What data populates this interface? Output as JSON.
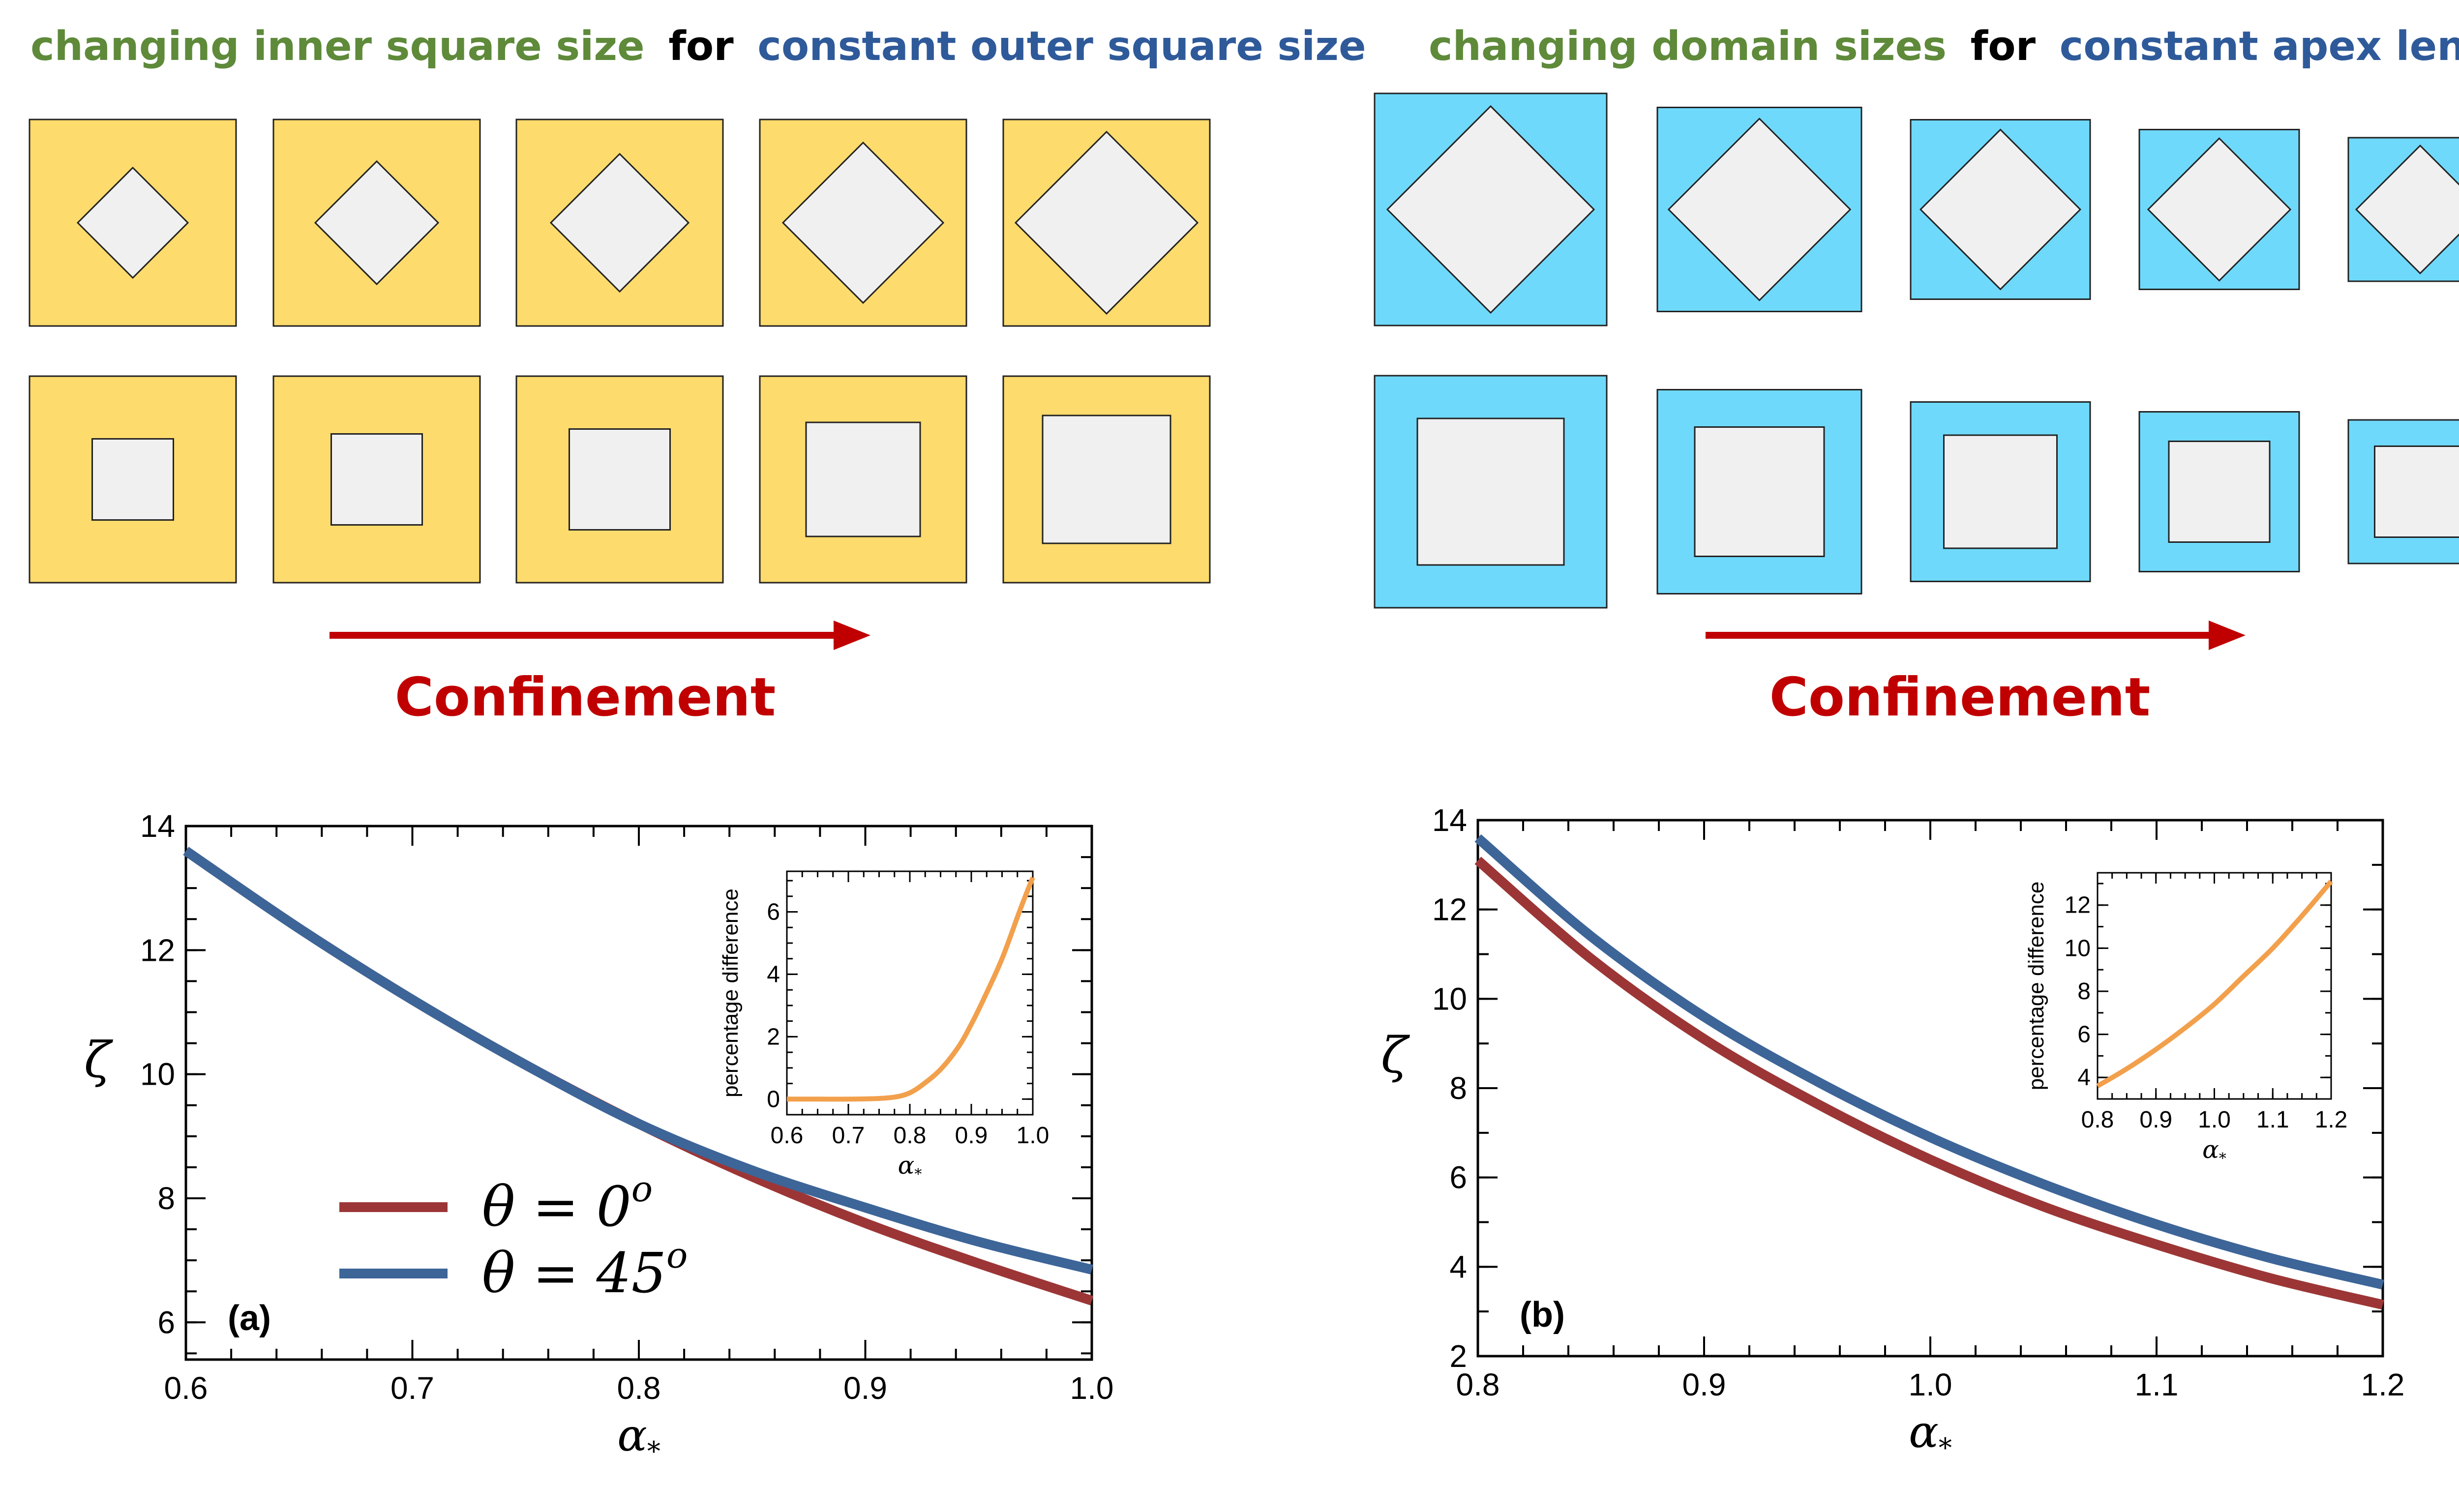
{
  "headings": {
    "left": {
      "part1": "changing inner square size",
      "part2": "for",
      "part3": "constant outer square size"
    },
    "right": {
      "part1": "changing domain sizes",
      "part2": "for",
      "part3": "constant apex length"
    }
  },
  "colors": {
    "green_text": "#5e8a3a",
    "black_text": "#000000",
    "blue_text": "#2f5a9a",
    "yellow_fill": "#fddb6d",
    "cyan_fill": "#6fd9fc",
    "inner_fill": "#f0f0f0",
    "arrow_red": "#c00000",
    "theta0_color": "#9c3636",
    "theta45_color": "#3d6598",
    "inset_color": "#f2a04c"
  },
  "confinement_label": "Confinement",
  "chart_data": [
    {
      "type": "line",
      "panel_label": "(a)",
      "xlabel": "α*",
      "ylabel": "ζ",
      "xlim": [
        0.6,
        1.0
      ],
      "ylim": [
        5.4,
        14.0
      ],
      "xticks": [
        "0.6",
        "0.7",
        "0.8",
        "0.9",
        "1.0"
      ],
      "yticks": [
        "6",
        "8",
        "10",
        "12",
        "14"
      ],
      "legend_location": "lower-left",
      "series": [
        {
          "name": "θ = 0°",
          "legend_lhs": "θ = 0",
          "legend_sup": "o",
          "color": "#9c3636",
          "x": [
            0.6,
            0.65,
            0.7,
            0.75,
            0.8,
            0.85,
            0.9,
            0.95,
            1.0
          ],
          "y": [
            13.6,
            12.35,
            11.2,
            10.15,
            9.2,
            8.35,
            7.6,
            6.95,
            6.35
          ]
        },
        {
          "name": "θ = 45°",
          "legend_lhs": "θ = 45",
          "legend_sup": "o",
          "color": "#3d6598",
          "x": [
            0.6,
            0.65,
            0.7,
            0.75,
            0.8,
            0.85,
            0.9,
            0.95,
            1.0
          ],
          "y": [
            13.6,
            12.35,
            11.2,
            10.15,
            9.2,
            8.45,
            7.85,
            7.3,
            6.85
          ]
        }
      ],
      "inset": {
        "type": "line",
        "xlabel": "α*",
        "ylabel": "percentage difference",
        "xlim": [
          0.6,
          1.0
        ],
        "ylim": [
          -0.5,
          7.3
        ],
        "xticks": [
          "0.6",
          "0.7",
          "0.8",
          "0.9",
          "1.0"
        ],
        "yticks": [
          "0",
          "2",
          "4",
          "6"
        ],
        "series": [
          {
            "color": "#f2a04c",
            "x": [
              0.6,
              0.65,
              0.7,
              0.75,
              0.78,
              0.8,
              0.82,
              0.85,
              0.88,
              0.9,
              0.92,
              0.95,
              0.98,
              1.0
            ],
            "y": [
              0.0,
              0.0,
              0.0,
              0.02,
              0.08,
              0.2,
              0.45,
              0.95,
              1.7,
              2.4,
              3.2,
              4.5,
              6.1,
              7.1
            ]
          }
        ]
      }
    },
    {
      "type": "line",
      "panel_label": "(b)",
      "xlabel": "α*",
      "ylabel": "ζ",
      "xlim": [
        0.8,
        1.2
      ],
      "ylim": [
        2.0,
        14.0
      ],
      "xticks": [
        "0.8",
        "0.9",
        "1.0",
        "1.1",
        "1.2"
      ],
      "yticks": [
        "2",
        "4",
        "6",
        "8",
        "10",
        "12",
        "14"
      ],
      "series": [
        {
          "color": "#9c3636",
          "x": [
            0.8,
            0.85,
            0.9,
            0.95,
            1.0,
            1.05,
            1.1,
            1.15,
            1.2
          ],
          "y": [
            13.1,
            10.9,
            9.1,
            7.65,
            6.4,
            5.35,
            4.5,
            3.75,
            3.15
          ]
        },
        {
          "color": "#3d6598",
          "x": [
            0.8,
            0.85,
            0.9,
            0.95,
            1.0,
            1.05,
            1.1,
            1.15,
            1.2
          ],
          "y": [
            13.6,
            11.4,
            9.6,
            8.15,
            6.9,
            5.85,
            4.95,
            4.2,
            3.6
          ]
        }
      ],
      "inset": {
        "type": "line",
        "xlabel": "α*",
        "ylabel": "percentage difference",
        "xlim": [
          0.8,
          1.2
        ],
        "ylim": [
          3.0,
          13.5
        ],
        "xticks": [
          "0.8",
          "0.9",
          "1.0",
          "1.1",
          "1.2"
        ],
        "yticks": [
          "4",
          "6",
          "8",
          "10",
          "12"
        ],
        "series": [
          {
            "color": "#f2a04c",
            "x": [
              0.8,
              0.85,
              0.9,
              0.95,
              1.0,
              1.05,
              1.1,
              1.15,
              1.2
            ],
            "y": [
              3.6,
              4.4,
              5.3,
              6.3,
              7.4,
              8.7,
              10.0,
              11.5,
              13.1
            ]
          }
        ]
      }
    }
  ]
}
